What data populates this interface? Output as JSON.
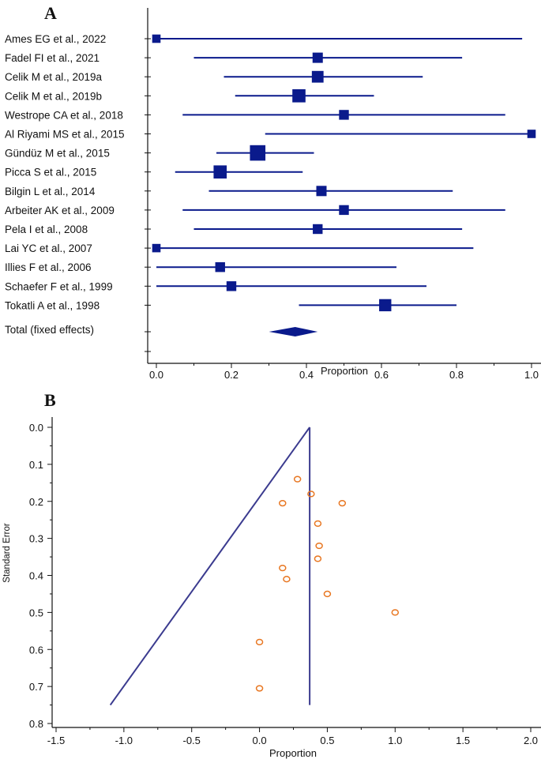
{
  "colors": {
    "forest": "#0a1a8c",
    "funnel": "#3b3b8f",
    "points": "#e87722",
    "axis": "#111111"
  },
  "chart_data": [
    {
      "panel": "A",
      "type": "forest",
      "xlabel": "Proportion",
      "xlim": [
        0.0,
        1.0
      ],
      "xticks": [
        "0.0",
        "0.2",
        "0.4",
        "0.6",
        "0.8",
        "1.0"
      ],
      "studies": [
        {
          "label": "Ames EG et al., 2022",
          "est": 0.0,
          "lo": 0.0,
          "hi": 0.975,
          "weight": 0.6
        },
        {
          "label": "Fadel FI et al., 2021",
          "est": 0.43,
          "lo": 0.1,
          "hi": 0.815,
          "weight": 1.0
        },
        {
          "label": "Celik M et al., 2019a",
          "est": 0.43,
          "lo": 0.18,
          "hi": 0.71,
          "weight": 1.3
        },
        {
          "label": "Celik M et al., 2019b",
          "est": 0.38,
          "lo": 0.21,
          "hi": 0.58,
          "weight": 1.6
        },
        {
          "label": "Westrope CA et al., 2018",
          "est": 0.5,
          "lo": 0.07,
          "hi": 0.93,
          "weight": 0.9
        },
        {
          "label": "Al Riyami MS et al., 2015",
          "est": 1.0,
          "lo": 0.29,
          "hi": 1.0,
          "weight": 0.6
        },
        {
          "label": "Gündüz M et al., 2015",
          "est": 0.27,
          "lo": 0.16,
          "hi": 0.42,
          "weight": 2.1
        },
        {
          "label": "Picca S et al., 2015",
          "est": 0.17,
          "lo": 0.05,
          "hi": 0.39,
          "weight": 1.6
        },
        {
          "label": "Bilgin L et al., 2014",
          "est": 0.44,
          "lo": 0.14,
          "hi": 0.79,
          "weight": 1.0
        },
        {
          "label": "Arbeiter AK et al., 2009",
          "est": 0.5,
          "lo": 0.07,
          "hi": 0.93,
          "weight": 0.9
        },
        {
          "label": "Pela I et al., 2008",
          "est": 0.43,
          "lo": 0.1,
          "hi": 0.815,
          "weight": 0.9
        },
        {
          "label": "Lai YC et al., 2007",
          "est": 0.0,
          "lo": 0.0,
          "hi": 0.845,
          "weight": 0.6
        },
        {
          "label": "Illies F et al., 2006",
          "est": 0.17,
          "lo": 0.0,
          "hi": 0.64,
          "weight": 0.9
        },
        {
          "label": "Schaefer F et al., 1999",
          "est": 0.2,
          "lo": 0.0,
          "hi": 0.72,
          "weight": 0.9
        },
        {
          "label": "Tokatli A et al., 1998",
          "est": 0.61,
          "lo": 0.38,
          "hi": 0.8,
          "weight": 1.4
        }
      ],
      "total": {
        "label": "Total (fixed effects)",
        "est": 0.37,
        "lo": 0.3,
        "hi": 0.43
      }
    },
    {
      "panel": "B",
      "type": "funnel",
      "xlabel": "Proportion",
      "ylabel": "Standard Error",
      "xlim": [
        -1.5,
        2.0
      ],
      "ylim": [
        0.0,
        0.8
      ],
      "xticks": [
        "-1.5",
        "-1.0",
        "-0.5",
        "0.0",
        "0.5",
        "1.0",
        "1.5",
        "2.0"
      ],
      "yticks": [
        "0.0",
        "0.1",
        "0.2",
        "0.3",
        "0.4",
        "0.5",
        "0.6",
        "0.7",
        "0.8"
      ],
      "summary_est": 0.37,
      "funnel_base_se": 0.75,
      "funnel_left_x": -1.1,
      "points": [
        {
          "x": 0.28,
          "se": 0.14
        },
        {
          "x": 0.38,
          "se": 0.18
        },
        {
          "x": 0.61,
          "se": 0.205
        },
        {
          "x": 0.17,
          "se": 0.205
        },
        {
          "x": 0.43,
          "se": 0.26
        },
        {
          "x": 0.44,
          "se": 0.32
        },
        {
          "x": 0.43,
          "se": 0.355
        },
        {
          "x": 0.17,
          "se": 0.38
        },
        {
          "x": 0.2,
          "se": 0.41
        },
        {
          "x": 0.5,
          "se": 0.45
        },
        {
          "x": 1.0,
          "se": 0.5
        },
        {
          "x": 0.0,
          "se": 0.58
        },
        {
          "x": 0.0,
          "se": 0.705
        }
      ]
    }
  ]
}
